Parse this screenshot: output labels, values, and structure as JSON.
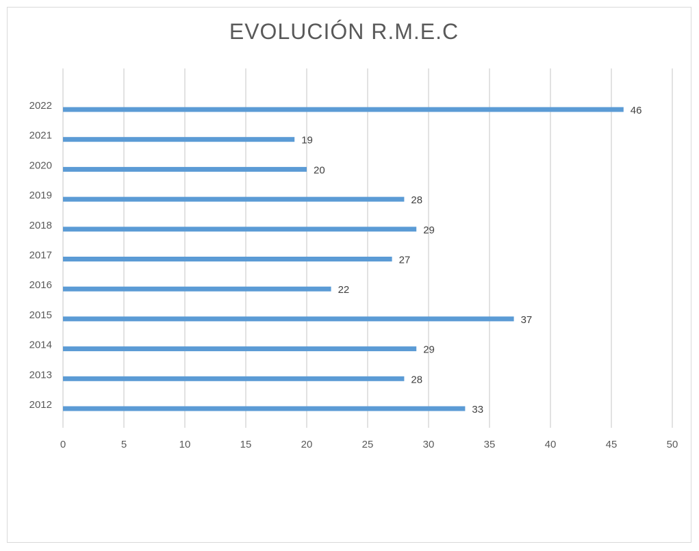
{
  "chart_data": {
    "type": "bar",
    "orientation": "horizontal",
    "title": "EVOLUCIÓN R.M.E.C",
    "xlabel": "",
    "ylabel": "",
    "categories": [
      "2012",
      "2013",
      "2014",
      "2015",
      "2016",
      "2017",
      "2018",
      "2019",
      "2020",
      "2021",
      "2022"
    ],
    "values": [
      33,
      28,
      29,
      37,
      22,
      27,
      29,
      28,
      20,
      19,
      46
    ],
    "xlim": [
      0,
      50
    ],
    "x_ticks": [
      "0",
      "5",
      "10",
      "15",
      "20",
      "25",
      "30",
      "35",
      "40",
      "45",
      "50"
    ],
    "grid": "vertical",
    "data_labels": true,
    "bar_color": "#5b9bd5",
    "grid_color": "#d9d9d9"
  }
}
